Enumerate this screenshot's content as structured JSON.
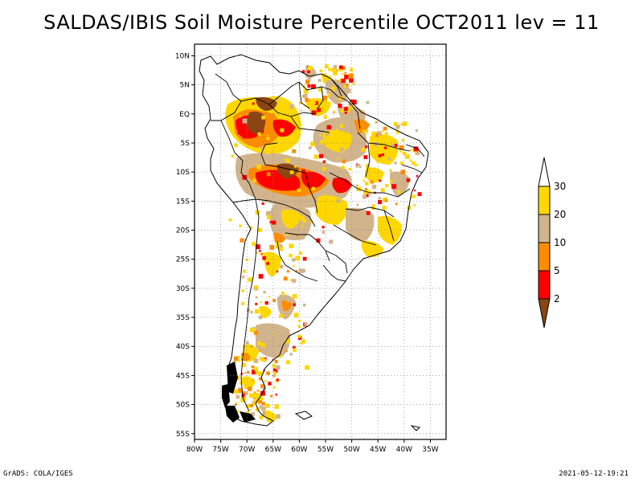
{
  "title": "SALDAS/IBIS Soil Moisture Percentile OCT2011 lev = 11",
  "map": {
    "lon_range": [
      -80,
      -32
    ],
    "lat_range": [
      -56,
      12
    ],
    "lat_ticks": [
      {
        "lat": 10,
        "label": "10N"
      },
      {
        "lat": 5,
        "label": "5N"
      },
      {
        "lat": 0,
        "label": "EQ"
      },
      {
        "lat": -5,
        "label": "5S"
      },
      {
        "lat": -10,
        "label": "10S"
      },
      {
        "lat": -15,
        "label": "15S"
      },
      {
        "lat": -20,
        "label": "20S"
      },
      {
        "lat": -25,
        "label": "25S"
      },
      {
        "lat": -30,
        "label": "30S"
      },
      {
        "lat": -35,
        "label": "35S"
      },
      {
        "lat": -40,
        "label": "40S"
      },
      {
        "lat": -45,
        "label": "45S"
      },
      {
        "lat": -50,
        "label": "50S"
      },
      {
        "lat": -55,
        "label": "55S"
      }
    ],
    "lon_ticks": [
      {
        "lon": -80,
        "label": "80W"
      },
      {
        "lon": -75,
        "label": "75W"
      },
      {
        "lon": -70,
        "label": "70W"
      },
      {
        "lon": -65,
        "label": "65W"
      },
      {
        "lon": -60,
        "label": "60W"
      },
      {
        "lon": -55,
        "label": "55W"
      },
      {
        "lon": -50,
        "label": "50W"
      },
      {
        "lon": -45,
        "label": "45W"
      },
      {
        "lon": -40,
        "label": "40W"
      },
      {
        "lon": -35,
        "label": "35W"
      }
    ]
  },
  "legend": {
    "bins": [
      {
        "label": "< 2",
        "color": "#8B4513"
      },
      {
        "label": "2-5",
        "color": "#FF0000"
      },
      {
        "label": "5-10",
        "color": "#FF8C00"
      },
      {
        "label": "10-20",
        "color": "#D2B48C"
      },
      {
        "label": "20-30",
        "color": "#FFD700"
      },
      {
        "label": "> 30",
        "color": "#FFFFFF"
      }
    ],
    "tick_labels": [
      "30",
      "20",
      "10",
      "5",
      "2"
    ]
  },
  "footer": {
    "left": "GrADS: COLA/IGES",
    "right": "2021-05-12-19:21"
  }
}
